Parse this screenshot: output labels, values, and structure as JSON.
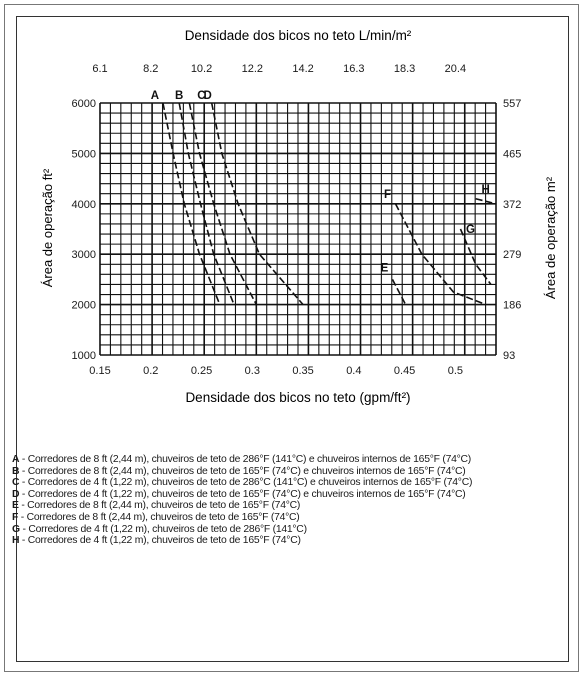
{
  "chart_data": {
    "type": "line",
    "title": "Densidade dos bicos no teto L/min/m²",
    "xlabel": "Densidade dos bicos no teto (gpm/ft²)",
    "ylabel": "Área de operação ft²",
    "ylabel_right": "Área de operação m²",
    "xlim": [
      0.15,
      0.54
    ],
    "ylim": [
      1000,
      6000
    ],
    "x_ticks": [
      "0.15",
      "0.2",
      "0.25",
      "0.3",
      "0.35",
      "0.4",
      "0.45",
      "0.5"
    ],
    "x_tick_values": [
      0.15,
      0.2,
      0.25,
      0.3,
      0.35,
      0.4,
      0.45,
      0.5
    ],
    "top_ticks": [
      "6.1",
      "8.2",
      "10.2",
      "12.2",
      "14.2",
      "16.3",
      "18.3",
      "20.4"
    ],
    "y_ticks": [
      "1000",
      "2000",
      "3000",
      "4000",
      "5000",
      "6000"
    ],
    "y_tick_values": [
      1000,
      2000,
      3000,
      4000,
      5000,
      6000
    ],
    "right_ticks": [
      "93",
      "186",
      "279",
      "372",
      "465",
      "557"
    ],
    "series": [
      {
        "name": "A",
        "values": [
          [
            0.212,
            6000
          ],
          [
            0.222,
            5000
          ],
          [
            0.233,
            4000
          ],
          [
            0.248,
            3000
          ],
          [
            0.268,
            2000
          ]
        ]
      },
      {
        "name": "B",
        "values": [
          [
            0.228,
            6000
          ],
          [
            0.237,
            5000
          ],
          [
            0.249,
            4000
          ],
          [
            0.262,
            3000
          ],
          [
            0.282,
            2000
          ]
        ]
      },
      {
        "name": "C",
        "values": [
          [
            0.238,
            6000
          ],
          [
            0.248,
            5000
          ],
          [
            0.262,
            4000
          ],
          [
            0.278,
            3000
          ],
          [
            0.304,
            2000
          ]
        ]
      },
      {
        "name": "D",
        "values": [
          [
            0.26,
            6000
          ],
          [
            0.27,
            5000
          ],
          [
            0.286,
            4000
          ],
          [
            0.307,
            3000
          ],
          [
            0.35,
            2000
          ]
        ]
      },
      {
        "name": "E",
        "values": [
          [
            0.438,
            2500
          ],
          [
            0.451,
            2000
          ]
        ]
      },
      {
        "name": "F",
        "values": [
          [
            0.441,
            4000
          ],
          [
            0.467,
            3000
          ],
          [
            0.498,
            2250
          ],
          [
            0.53,
            2000
          ]
        ]
      },
      {
        "name": "G",
        "values": [
          [
            0.505,
            3500
          ],
          [
            0.52,
            2800
          ],
          [
            0.535,
            2400
          ]
        ]
      },
      {
        "name": "H",
        "values": [
          [
            0.52,
            4100
          ],
          [
            0.54,
            4000
          ]
        ]
      }
    ],
    "legend": [
      {
        "key": "A",
        "text": " - Corredores de 8 ft (2,44 m), chuveiros de teto de 286°F (141°C) e chuveiros internos de 165°F (74°C)"
      },
      {
        "key": "B",
        "text": " - Corredores de 8 ft (2,44 m), chuveiros de teto de 165°F (74°C) e chuveiros internos de 165°F (74°C)"
      },
      {
        "key": "C",
        "text": " - Corredores de 4 ft (1,22 m), chuveiros de teto de 286°C (141°C) e chuveiros internos de 165°F (74°C)"
      },
      {
        "key": "D",
        "text": " - Corredores de 4 ft (1,22 m), chuveiros de teto de 165°F (74°C) e chuveiros internos de 165°F (74°C)"
      },
      {
        "key": "E",
        "text": " - Corredores de 8 ft (2,44 m), chuveiros de teto de 165°F (74°C)"
      },
      {
        "key": "F",
        "text": " - Corredores de 8 ft (2,44 m), chuveiros de teto de 165°F (74°C)"
      },
      {
        "key": "G",
        "text": " - Corredores de 4 ft (1,22 m), chuveiros de teto de 286°F (141°C)"
      },
      {
        "key": "H",
        "text": " - Corredores de 4 ft (1,22 m), chuveiros de teto de 165°F (74°C)"
      }
    ]
  }
}
